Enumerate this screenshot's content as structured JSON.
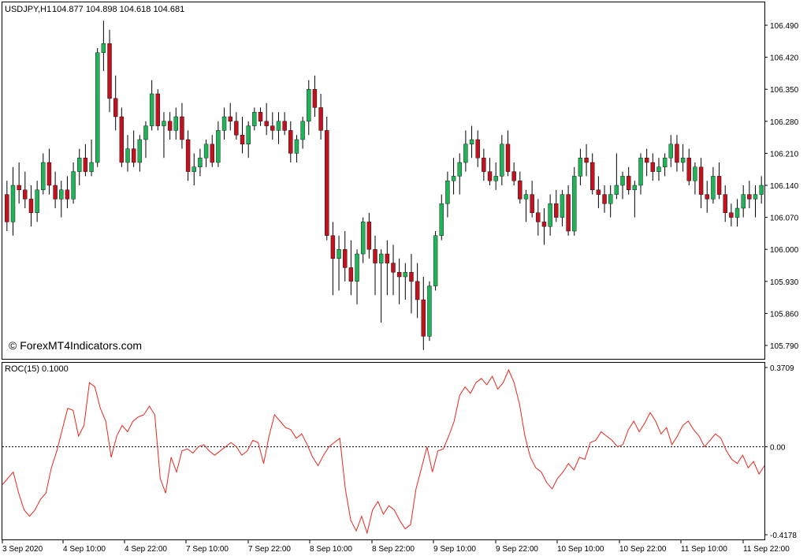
{
  "header": {
    "symbol_label": "USDJPY,H1",
    "ohlc_label": "104.877 104.898 104.618 104.681"
  },
  "watermark": "© ForexMT4Indicators.com",
  "indicator": {
    "label": "ROC(15) 0.1000"
  },
  "colors": {
    "bull": "#22b35a",
    "bear": "#c1121f",
    "wick": "#000000",
    "roc_line": "#e8281e",
    "zero_line": "#000000",
    "frame": "#000000"
  },
  "chart_data": [
    {
      "type": "candlestick",
      "title": "USDJPY,H1",
      "ylim": [
        105.755,
        106.525
      ],
      "y_ticks": [
        "106.490",
        "106.420",
        "106.350",
        "106.280",
        "106.210",
        "106.140",
        "106.070",
        "106.000",
        "105.930",
        "105.860",
        "105.790"
      ],
      "x_ticks": [
        "3 Sep 2020",
        "4 Sep 10:00",
        "4 Sep 22:00",
        "7 Sep 10:00",
        "7 Sep 22:00",
        "8 Sep 10:00",
        "8 Sep 22:00",
        "9 Sep 10:00",
        "9 Sep 22:00",
        "10 Sep 10:00",
        "10 Sep 22:00",
        "11 Sep 10:00",
        "11 Sep 22:00"
      ],
      "candles": [
        [
          106.12,
          106.15,
          106.04,
          106.06
        ],
        [
          106.06,
          106.18,
          106.03,
          106.14
        ],
        [
          106.14,
          106.19,
          106.1,
          106.13
        ],
        [
          106.13,
          106.17,
          106.09,
          106.11
        ],
        [
          106.11,
          106.14,
          106.05,
          106.08
        ],
        [
          106.08,
          106.15,
          106.06,
          106.13
        ],
        [
          106.13,
          106.21,
          106.12,
          106.19
        ],
        [
          106.19,
          106.22,
          106.12,
          106.14
        ],
        [
          106.14,
          106.17,
          106.09,
          106.11
        ],
        [
          106.11,
          106.15,
          106.07,
          106.13
        ],
        [
          106.13,
          106.16,
          106.09,
          106.11
        ],
        [
          106.11,
          106.19,
          106.1,
          106.17
        ],
        [
          106.17,
          106.22,
          106.14,
          106.2
        ],
        [
          106.2,
          106.23,
          106.16,
          106.17
        ],
        [
          106.17,
          106.24,
          106.16,
          106.19
        ],
        [
          106.19,
          106.44,
          106.18,
          106.43
        ],
        [
          106.43,
          106.5,
          106.39,
          106.45
        ],
        [
          106.45,
          106.48,
          106.3,
          106.33
        ],
        [
          106.33,
          106.38,
          106.26,
          106.29
        ],
        [
          106.29,
          106.31,
          106.18,
          106.19
        ],
        [
          106.19,
          106.25,
          106.17,
          106.22
        ],
        [
          106.22,
          106.26,
          106.18,
          106.19
        ],
        [
          106.19,
          106.25,
          106.17,
          106.24
        ],
        [
          106.24,
          106.28,
          106.2,
          106.27
        ],
        [
          106.27,
          106.37,
          106.26,
          106.34
        ],
        [
          106.34,
          106.35,
          106.26,
          106.27
        ],
        [
          106.27,
          106.3,
          106.2,
          106.28
        ],
        [
          106.28,
          106.3,
          106.24,
          106.26
        ],
        [
          106.26,
          106.31,
          106.24,
          106.29
        ],
        [
          106.29,
          106.32,
          106.22,
          106.24
        ],
        [
          106.24,
          106.26,
          106.15,
          106.17
        ],
        [
          106.17,
          106.21,
          106.14,
          106.18
        ],
        [
          106.18,
          106.22,
          106.16,
          106.2
        ],
        [
          106.2,
          106.24,
          106.18,
          106.23
        ],
        [
          106.23,
          106.25,
          106.18,
          106.19
        ],
        [
          106.19,
          106.28,
          106.18,
          106.26
        ],
        [
          106.26,
          106.31,
          106.24,
          106.29
        ],
        [
          106.29,
          106.32,
          106.26,
          106.28
        ],
        [
          106.28,
          106.3,
          106.24,
          106.25
        ],
        [
          106.25,
          106.29,
          106.21,
          106.23
        ],
        [
          106.23,
          106.28,
          106.2,
          106.27
        ],
        [
          106.27,
          106.31,
          106.26,
          106.3
        ],
        [
          106.3,
          106.31,
          106.27,
          106.28
        ],
        [
          106.28,
          106.32,
          106.25,
          106.27
        ],
        [
          106.27,
          106.3,
          106.24,
          106.26
        ],
        [
          106.26,
          106.3,
          106.23,
          106.28
        ],
        [
          106.28,
          106.3,
          106.25,
          106.26
        ],
        [
          106.26,
          106.28,
          106.19,
          106.21
        ],
        [
          106.21,
          106.25,
          106.19,
          106.24
        ],
        [
          106.24,
          106.29,
          106.22,
          106.28
        ],
        [
          106.28,
          106.37,
          106.25,
          106.35
        ],
        [
          106.35,
          106.38,
          106.29,
          106.31
        ],
        [
          106.31,
          106.34,
          106.24,
          106.26
        ],
        [
          106.26,
          106.29,
          106.02,
          106.03
        ],
        [
          106.03,
          106.06,
          105.9,
          105.98
        ],
        [
          105.98,
          106.03,
          105.91,
          106.0
        ],
        [
          106.0,
          106.04,
          105.93,
          105.96
        ],
        [
          105.96,
          106.02,
          105.9,
          105.93
        ],
        [
          105.93,
          106.0,
          105.88,
          105.99
        ],
        [
          105.99,
          106.07,
          105.97,
          106.06
        ],
        [
          106.06,
          106.08,
          105.98,
          106.0
        ],
        [
          106.0,
          106.03,
          105.9,
          105.97
        ],
        [
          105.97,
          106.0,
          105.84,
          105.99
        ],
        [
          105.99,
          106.02,
          105.9,
          105.97
        ],
        [
          105.97,
          106.01,
          105.9,
          105.95
        ],
        [
          105.95,
          105.98,
          105.88,
          105.94
        ],
        [
          105.94,
          105.97,
          105.89,
          105.95
        ],
        [
          105.95,
          105.99,
          105.86,
          105.93
        ],
        [
          105.93,
          105.97,
          105.85,
          105.89
        ],
        [
          105.89,
          105.94,
          105.78,
          105.81
        ],
        [
          105.81,
          105.93,
          105.8,
          105.92
        ],
        [
          105.92,
          106.04,
          105.91,
          106.03
        ],
        [
          106.03,
          106.12,
          106.02,
          106.1
        ],
        [
          106.1,
          106.17,
          106.07,
          106.15
        ],
        [
          106.15,
          106.2,
          106.12,
          106.16
        ],
        [
          106.16,
          106.21,
          106.12,
          106.19
        ],
        [
          106.19,
          106.26,
          106.17,
          106.23
        ],
        [
          106.23,
          106.27,
          106.2,
          106.24
        ],
        [
          106.24,
          106.26,
          106.18,
          106.2
        ],
        [
          106.2,
          106.22,
          106.15,
          106.17
        ],
        [
          106.17,
          106.2,
          106.14,
          106.15
        ],
        [
          106.15,
          106.19,
          106.13,
          106.16
        ],
        [
          106.16,
          106.25,
          106.14,
          106.23
        ],
        [
          106.23,
          106.26,
          106.16,
          106.17
        ],
        [
          106.17,
          106.19,
          106.14,
          106.15
        ],
        [
          106.15,
          106.17,
          106.1,
          106.11
        ],
        [
          106.11,
          106.13,
          106.06,
          106.12
        ],
        [
          106.12,
          106.15,
          106.07,
          106.08
        ],
        [
          106.08,
          106.11,
          106.03,
          106.06
        ],
        [
          106.06,
          106.09,
          106.01,
          106.05
        ],
        [
          106.05,
          106.12,
          106.03,
          106.1
        ],
        [
          106.1,
          106.13,
          106.06,
          106.07
        ],
        [
          106.07,
          106.13,
          106.05,
          106.12
        ],
        [
          106.12,
          106.14,
          106.03,
          106.04
        ],
        [
          106.04,
          106.18,
          106.03,
          106.16
        ],
        [
          106.16,
          106.22,
          106.14,
          106.2
        ],
        [
          106.2,
          106.23,
          106.16,
          106.19
        ],
        [
          106.19,
          106.21,
          106.12,
          106.13
        ],
        [
          106.13,
          106.16,
          106.09,
          106.12
        ],
        [
          106.12,
          106.14,
          106.08,
          106.1
        ],
        [
          106.1,
          106.14,
          106.07,
          106.12
        ],
        [
          106.12,
          106.21,
          106.11,
          106.14
        ],
        [
          106.14,
          106.17,
          106.11,
          106.16
        ],
        [
          106.16,
          106.18,
          106.12,
          106.13
        ],
        [
          106.13,
          106.15,
          106.07,
          106.14
        ],
        [
          106.14,
          106.21,
          106.12,
          106.2
        ],
        [
          106.2,
          106.22,
          106.16,
          106.19
        ],
        [
          106.19,
          106.21,
          106.15,
          106.17
        ],
        [
          106.17,
          106.2,
          106.15,
          106.18
        ],
        [
          106.18,
          106.21,
          106.16,
          106.2
        ],
        [
          106.2,
          106.25,
          106.18,
          106.23
        ],
        [
          106.23,
          106.25,
          106.17,
          106.19
        ],
        [
          106.19,
          106.23,
          106.17,
          106.2
        ],
        [
          106.2,
          106.22,
          106.14,
          106.15
        ],
        [
          106.15,
          106.19,
          106.12,
          106.18
        ],
        [
          106.18,
          106.2,
          106.09,
          106.12
        ],
        [
          106.12,
          106.15,
          106.08,
          106.11
        ],
        [
          106.11,
          106.18,
          106.1,
          106.16
        ],
        [
          106.16,
          106.19,
          106.11,
          106.12
        ],
        [
          106.12,
          106.14,
          106.06,
          106.08
        ],
        [
          106.08,
          106.1,
          106.05,
          106.07
        ],
        [
          106.07,
          106.11,
          106.05,
          106.09
        ],
        [
          106.09,
          106.14,
          106.07,
          106.12
        ],
        [
          106.12,
          106.15,
          106.09,
          106.11
        ],
        [
          106.11,
          106.14,
          106.07,
          106.12
        ],
        [
          106.12,
          106.16,
          106.1,
          106.14
        ]
      ]
    },
    {
      "type": "line",
      "title": "ROC(15) 0.1000",
      "ylim": [
        -0.4178,
        0.3709
      ],
      "y_ticks": [
        "0.3709",
        "0.00",
        "-0.4178"
      ],
      "series": [
        {
          "values": [
            -0.18,
            -0.15,
            -0.12,
            -0.22,
            -0.3,
            -0.33,
            -0.3,
            -0.25,
            -0.22,
            -0.1,
            -0.02,
            0.08,
            0.18,
            0.17,
            0.05,
            0.1,
            0.3,
            0.28,
            0.18,
            0.12,
            -0.05,
            0.05,
            0.1,
            0.07,
            0.12,
            0.14,
            0.15,
            0.19,
            0.15,
            -0.15,
            -0.22,
            -0.05,
            -0.12,
            -0.02,
            -0.01,
            -0.03,
            0.0,
            0.01,
            -0.02,
            -0.04,
            -0.02,
            0.0,
            0.02,
            0.0,
            -0.04,
            -0.02,
            0.03,
            0.02,
            -0.08,
            0.05,
            0.15,
            0.12,
            0.09,
            0.08,
            0.04,
            0.06,
            0.01,
            -0.05,
            -0.09,
            -0.04,
            0.0,
            0.02,
            0.04,
            -0.2,
            -0.35,
            -0.4,
            -0.33,
            -0.41,
            -0.3,
            -0.26,
            -0.32,
            -0.28,
            -0.3,
            -0.35,
            -0.39,
            -0.37,
            -0.2,
            -0.1,
            0.0,
            -0.12,
            -0.02,
            -0.01,
            0.05,
            0.12,
            0.24,
            0.28,
            0.25,
            0.3,
            0.32,
            0.29,
            0.33,
            0.27,
            0.3,
            0.36,
            0.3,
            0.2,
            0.05,
            -0.05,
            -0.1,
            -0.12,
            -0.17,
            -0.2,
            -0.15,
            -0.12,
            -0.08,
            -0.11,
            -0.05,
            -0.06,
            0.02,
            0.03,
            0.07,
            0.05,
            0.03,
            0.0,
            0.01,
            0.08,
            0.12,
            0.07,
            0.11,
            0.16,
            0.12,
            0.06,
            0.09,
            0.01,
            0.05,
            0.1,
            0.12,
            0.08,
            0.05,
            0.0,
            0.03,
            0.06,
            0.04,
            -0.02,
            -0.06,
            -0.08,
            -0.04,
            -0.1,
            -0.07,
            -0.13,
            -0.09
          ]
        }
      ]
    }
  ]
}
